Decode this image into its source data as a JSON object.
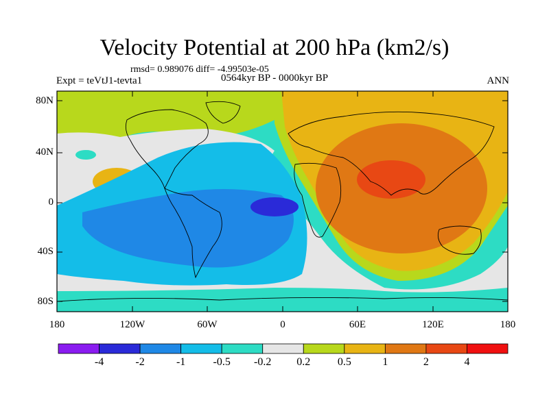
{
  "title": "Velocity Potential at 200 hPa (km2/s)",
  "stats": "rmsd= 0.989076 diff= -4.99503e-05",
  "expt": "Expt = teVtJ1-tevta1",
  "period": "0564kyr BP - 0000kyr BP",
  "season": "ANN",
  "lat_labels": [
    "80N",
    "40N",
    "0",
    "40S",
    "80S"
  ],
  "lon_labels": [
    "180",
    "120W",
    "60W",
    "0",
    "60E",
    "120E",
    "180"
  ],
  "colorbar": {
    "labels": [
      "-4",
      "-2",
      "-1",
      "-0.5",
      "-0.2",
      "0.2",
      "0.5",
      "1",
      "2",
      "4"
    ],
    "colors": [
      "#8a1cf0",
      "#2a2ad8",
      "#1f88e6",
      "#14bde8",
      "#2ddcc4",
      "#e6e6e6",
      "#b8d81c",
      "#e8b414",
      "#e07814",
      "#e84814",
      "#f01010"
    ]
  }
}
